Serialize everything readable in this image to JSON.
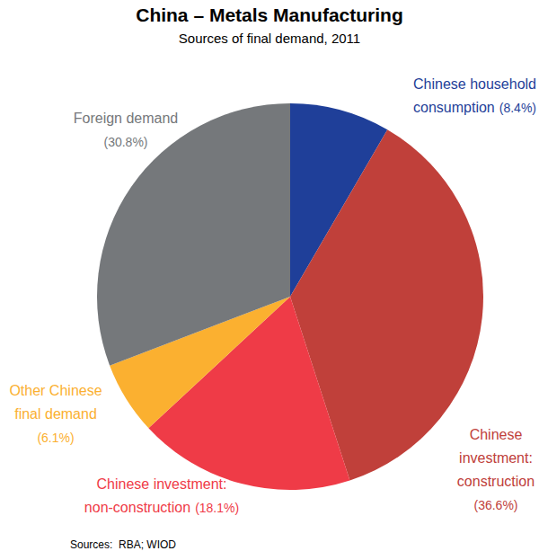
{
  "chart_data": {
    "type": "pie",
    "title": "China – Metals Manufacturing",
    "subtitle": "Sources of final demand, 2011",
    "source": "Sources:  RBA; WIOD",
    "categories": [
      "Chinese household consumption",
      "Chinese investment: construction",
      "Chinese investment: non-construction",
      "Other Chinese final demand",
      "Foreign demand"
    ],
    "values": [
      8.4,
      36.6,
      18.1,
      6.1,
      30.8
    ],
    "value_labels": [
      "(8.4%)",
      "(36.6%)",
      "(18.1%)",
      "(6.1%)",
      "(30.8%)"
    ],
    "colors": [
      "#1f3f99",
      "#c0403a",
      "#ef3b47",
      "#fbb030",
      "#75787b"
    ],
    "data_labels": true
  }
}
